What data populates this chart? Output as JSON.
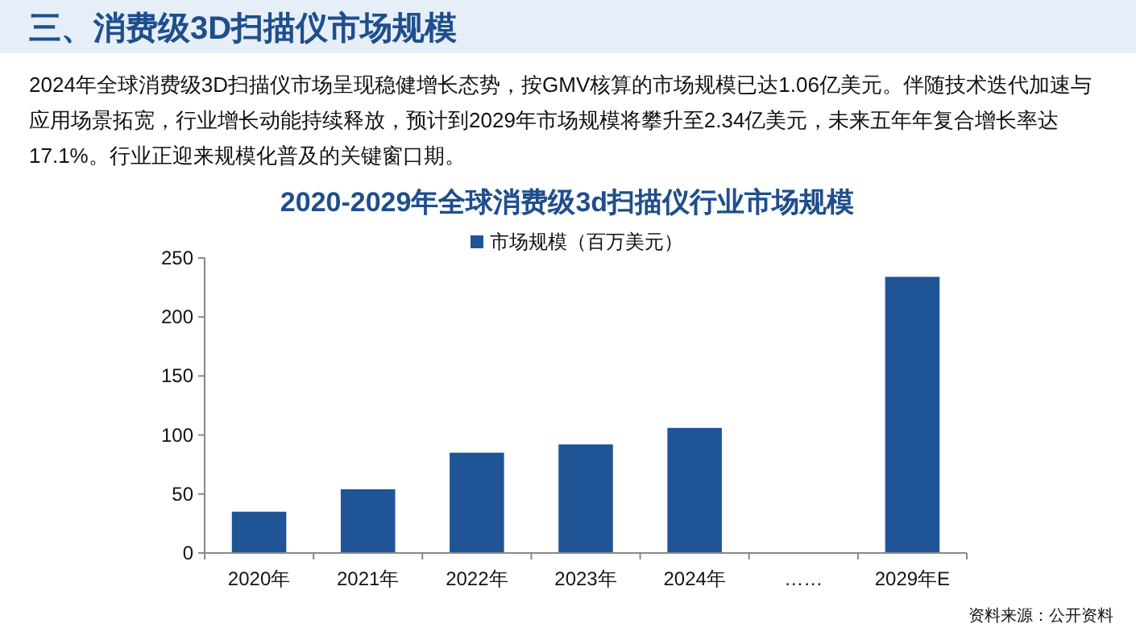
{
  "chart_data": {
    "type": "bar",
    "title": "2020-2029年全球消费级3d扫描仪行业市场规模",
    "annotations": [
      "三、消费级3D扫描仪市场规模",
      "2024年全球消费级3D扫描仪市场呈现稳健增长态势，按GMV核算的市场规模已达1.06亿美元。伴随技术迭代加速与应用场景拓宽，行业增长动能持续释放，预计到2029年市场规模将攀升至2.34亿美元，未来五年年复合增长率达17.1%。行业正迎来规模化普及的关键窗口期。",
      "资料来源：公开资料"
    ],
    "categories": [
      "2020年",
      "2021年",
      "2022年",
      "2023年",
      "2024年",
      "……",
      "2029年E"
    ],
    "series": [
      {
        "name": "市场规模（百万美元）",
        "color": "#1f5596",
        "values": [
          35,
          54,
          85,
          92,
          106,
          null,
          234
        ]
      }
    ],
    "ylim": [
      0,
      250
    ],
    "yticks": [
      0,
      50,
      100,
      150,
      200,
      250
    ],
    "grid": false,
    "legend": "top"
  }
}
